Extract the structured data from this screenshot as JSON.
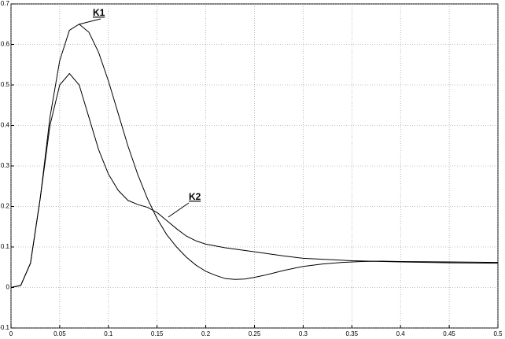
{
  "chart_data": {
    "type": "line",
    "xlim": [
      0,
      0.5
    ],
    "ylim": [
      -0.1,
      0.7
    ],
    "xticks": [
      0,
      0.05,
      0.1,
      0.15,
      0.2,
      0.25,
      0.3,
      0.35,
      0.4,
      0.45,
      0.5
    ],
    "yticks": [
      -0.1,
      0,
      0.1,
      0.2,
      0.3,
      0.4,
      0.5,
      0.6,
      0.7
    ],
    "grid": true,
    "series": [
      {
        "name": "K1",
        "color": "#000000",
        "x": [
          0,
          0.01,
          0.02,
          0.03,
          0.04,
          0.05,
          0.06,
          0.07,
          0.08,
          0.09,
          0.1,
          0.11,
          0.12,
          0.13,
          0.14,
          0.15,
          0.16,
          0.17,
          0.18,
          0.19,
          0.2,
          0.21,
          0.22,
          0.23,
          0.24,
          0.25,
          0.26,
          0.27,
          0.28,
          0.29,
          0.3,
          0.32,
          0.34,
          0.36,
          0.38,
          0.4,
          0.45,
          0.5
        ],
        "values": [
          0,
          0.005,
          0.06,
          0.22,
          0.42,
          0.56,
          0.635,
          0.65,
          0.63,
          0.58,
          0.51,
          0.43,
          0.35,
          0.28,
          0.22,
          0.17,
          0.13,
          0.1,
          0.075,
          0.055,
          0.04,
          0.03,
          0.022,
          0.02,
          0.021,
          0.025,
          0.03,
          0.036,
          0.042,
          0.047,
          0.052,
          0.058,
          0.062,
          0.064,
          0.065,
          0.064,
          0.063,
          0.062
        ]
      },
      {
        "name": "K2",
        "color": "#000000",
        "x": [
          0,
          0.01,
          0.02,
          0.03,
          0.04,
          0.05,
          0.06,
          0.07,
          0.08,
          0.09,
          0.1,
          0.11,
          0.12,
          0.13,
          0.14,
          0.15,
          0.16,
          0.17,
          0.18,
          0.19,
          0.2,
          0.22,
          0.25,
          0.28,
          0.3,
          0.35,
          0.4,
          0.45,
          0.5
        ],
        "values": [
          0,
          0.005,
          0.06,
          0.22,
          0.4,
          0.5,
          0.528,
          0.5,
          0.42,
          0.34,
          0.28,
          0.24,
          0.215,
          0.205,
          0.198,
          0.185,
          0.165,
          0.145,
          0.127,
          0.115,
          0.107,
          0.098,
          0.088,
          0.078,
          0.072,
          0.066,
          0.063,
          0.061,
          0.06
        ]
      }
    ]
  }
}
